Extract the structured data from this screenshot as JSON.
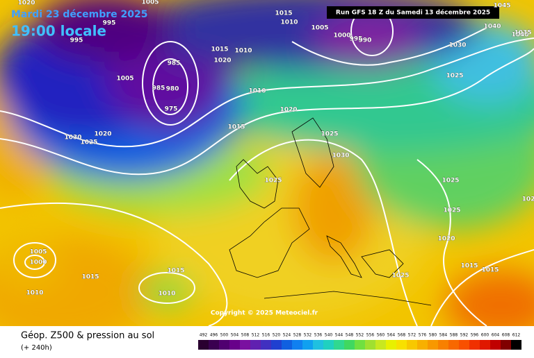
{
  "header": {
    "date": "Mardi 23 décembre 2025",
    "time": "19:00 locale",
    "run": "Run GFS 18 Z du Samedi 13 décembre 2025",
    "copyright": "Copyright © 2025 Meteociel.fr"
  },
  "legend": {
    "title": "Géop. Z500 & pression au sol",
    "range": "(+ 240h)",
    "scale": [
      492,
      496,
      500,
      504,
      508,
      512,
      516,
      520,
      524,
      528,
      532,
      536,
      540,
      544,
      548,
      552,
      556,
      560,
      564,
      568,
      572,
      576,
      580,
      584,
      588,
      592,
      596,
      600,
      604,
      608,
      612
    ]
  },
  "isobars": [
    "1020",
    "995",
    "995",
    "1005",
    "1015",
    "1010",
    "1005",
    "1000",
    "995",
    "990",
    "1045",
    "1040",
    "1040",
    "1035",
    "1030",
    "1025",
    "1015",
    "1020",
    "1010",
    "985",
    "985",
    "980",
    "975",
    "1005",
    "1010",
    "1020",
    "1015",
    "1025",
    "1030",
    "1020",
    "1030",
    "1025",
    "1025",
    "1025",
    "1025",
    "1020",
    "1005",
    "1000",
    "1010",
    "1015",
    "1015",
    "1010",
    "1015",
    "1015",
    "1025",
    "102"
  ]
}
